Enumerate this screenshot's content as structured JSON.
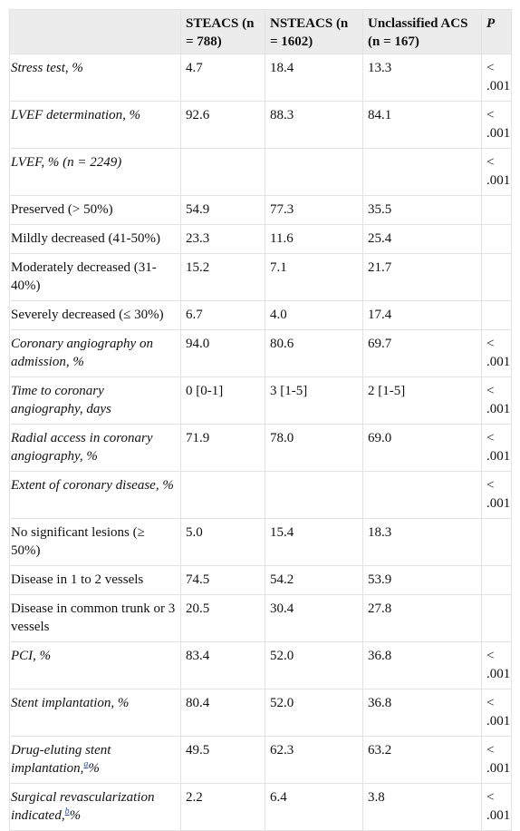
{
  "table": {
    "header": [
      null,
      "STEACS (n = 788)",
      "NSTEACS (n = 1602)",
      "Unclassified ACS (n = 167)",
      "P"
    ],
    "rows": [
      {
        "label": "Stress test, %",
        "italic": true,
        "cells": [
          "4.7",
          "18.4",
          "13.3",
          "< .001"
        ]
      },
      {
        "label": "LVEF determination, %",
        "italic": true,
        "cells": [
          "92.6",
          "88.3",
          "84.1",
          "< .001"
        ]
      },
      {
        "label": "LVEF, % (n = 2249)",
        "italic": true,
        "cells": [
          null,
          null,
          null,
          "< .001"
        ]
      },
      {
        "label": " Preserved (> 50%)",
        "italic": false,
        "cells": [
          "54.9",
          "77.3",
          "35.5",
          null
        ]
      },
      {
        "label": " Mildly decreased (41-50%)",
        "italic": false,
        "cells": [
          "23.3",
          "11.6",
          "25.4",
          null
        ]
      },
      {
        "label": " Moderately decreased (31-40%)",
        "italic": false,
        "cells": [
          "15.2",
          "7.1",
          "21.7",
          null
        ]
      },
      {
        "label": " Severely decreased (≤ 30%)",
        "italic": false,
        "cells": [
          "6.7",
          "4.0",
          "17.4",
          null
        ]
      },
      {
        "label": "Coronary angiography on admission, %",
        "italic": true,
        "cells": [
          "94.0",
          "80.6",
          "69.7",
          "< .001"
        ]
      },
      {
        "label": "Time to coronary angiography, days",
        "italic": true,
        "cells": [
          "0 [0-1]",
          "3 [1-5]",
          "2 [1-5]",
          "< .001"
        ]
      },
      {
        "label": "Radial access in coronary angiography, %",
        "italic": true,
        "cells": [
          "71.9",
          "78.0",
          "69.0",
          "< .001"
        ]
      },
      {
        "label": "Extent of coronary disease, %",
        "italic": true,
        "cells": [
          null,
          null,
          null,
          "< .001"
        ]
      },
      {
        "label": " No significant lesions (≥ 50%)",
        "italic": false,
        "cells": [
          "5.0",
          "15.4",
          "18.3",
          null
        ]
      },
      {
        "label": " Disease in 1 to 2 vessels",
        "italic": false,
        "cells": [
          "74.5",
          "54.2",
          "53.9",
          null
        ]
      },
      {
        "label": " Disease in common trunk or 3 vessels",
        "italic": false,
        "cells": [
          "20.5",
          "30.4",
          "27.8",
          null
        ]
      },
      {
        "label": "PCI, %",
        "italic": true,
        "cells": [
          "83.4",
          "52.0",
          "36.8",
          "< .001"
        ]
      },
      {
        "label": "Stent implantation, %",
        "italic": true,
        "cells": [
          "80.4",
          "52.0",
          "36.8",
          "< .001"
        ]
      },
      {
        "label": "Drug-eluting stent implantation,",
        "note": "a",
        "suffix": "%",
        "italic": true,
        "cells": [
          "49.5",
          "62.3",
          "63.2",
          "< .001"
        ]
      },
      {
        "label": "Surgical revascularization indicated,",
        "note": "b",
        "suffix": "%",
        "italic": true,
        "cells": [
          "2.2",
          "6.4",
          "3.8",
          "< .001"
        ]
      }
    ]
  }
}
